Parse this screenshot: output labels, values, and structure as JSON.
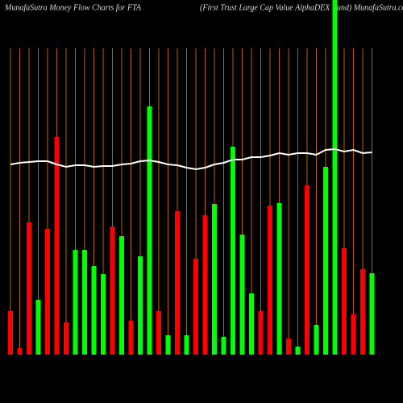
{
  "chart_data": {
    "type": "bar",
    "title": "MunafaSutra  Money Flow  Charts for FTA",
    "subtitle": "(First Trust Large   Cap Value   AlphaDEX   Fund) MunafaSutra.com",
    "ylim": [
      0,
      440
    ],
    "values": [
      54,
      8,
      164,
      68,
      156,
      270,
      40,
      130,
      130,
      110,
      100,
      159,
      147,
      42,
      122,
      308,
      54,
      24,
      178,
      24,
      119,
      173,
      187,
      22,
      258,
      149,
      76,
      54,
      185,
      188,
      20,
      10,
      210,
      37,
      233,
      440,
      132,
      50,
      106,
      101
    ],
    "bar_colors": [
      "#ff0000",
      "#ff0000",
      "#ff0000",
      "#00ff00",
      "#ff0000",
      "#ff0000",
      "#ff0000",
      "#00ff00",
      "#00ff00",
      "#00ff00",
      "#00ff00",
      "#ff0000",
      "#00ff00",
      "#ff0000",
      "#00ff00",
      "#00ff00",
      "#ff0000",
      "#00ff00",
      "#ff0000",
      "#00ff00",
      "#ff0000",
      "#ff0000",
      "#00ff00",
      "#00ff00",
      "#00ff00",
      "#00ff00",
      "#00ff00",
      "#ff0000",
      "#ff0000",
      "#00ff00",
      "#ff0000",
      "#00ff00",
      "#ff0000",
      "#00ff00",
      "#00ff00",
      "#00ff00",
      "#ff0000",
      "#ff0000",
      "#ff0000",
      "#00ff00"
    ],
    "line": {
      "color": "#ffffff",
      "values": [
        236,
        238,
        239,
        240,
        240,
        236,
        233,
        235,
        235,
        233,
        234,
        234,
        236,
        237,
        240,
        241,
        239,
        236,
        235,
        232,
        230,
        232,
        236,
        238,
        242,
        242,
        245,
        245,
        247,
        250,
        248,
        250,
        250,
        248,
        254,
        255,
        252,
        254,
        250,
        251
      ]
    },
    "grid": true,
    "grid_color": "#b8600a"
  }
}
